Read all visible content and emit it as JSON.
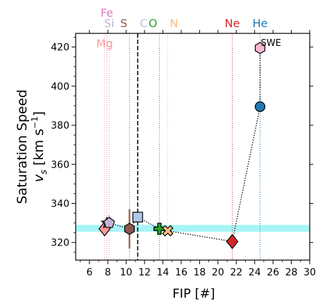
{
  "chart_data": {
    "type": "scatter",
    "xlabel": "FIP [#]",
    "ylabel_line1": "Saturation Speed",
    "ylabel_line2": "v_s [km s^-1]",
    "xlim": [
      4.5,
      30
    ],
    "ylim": [
      311,
      427
    ],
    "x_ticks": [
      6,
      8,
      10,
      12,
      14,
      16,
      18,
      20,
      22,
      24,
      26,
      28,
      30
    ],
    "y_ticks": [
      320,
      340,
      360,
      380,
      400,
      420
    ],
    "band": {
      "y0": 325.5,
      "y1": 329,
      "color": "#a6f5f7"
    },
    "dashed_vline": {
      "x": 11.26,
      "color": "#000000"
    },
    "elements": [
      {
        "name": "Fe",
        "fip": 7.9,
        "color": "#e377c2",
        "row": 0
      },
      {
        "name": "Si",
        "fip": 8.15,
        "color": "#c5b0d5",
        "row": 1
      },
      {
        "name": "Mg",
        "fip": 7.65,
        "color": "#ff9896",
        "row": 2
      },
      {
        "name": "S",
        "fip": 10.36,
        "color": "#8c564b",
        "row": 1
      },
      {
        "name": "C",
        "fip": 11.26,
        "color": "#aec7e8",
        "row": 1
      },
      {
        "name": "O",
        "fip": 13.62,
        "color": "#2ca02c",
        "row": 1
      },
      {
        "name": "N",
        "fip": 14.53,
        "color": "#ffbb78",
        "row": 1
      },
      {
        "name": "Ne",
        "fip": 21.56,
        "color": "#d62728",
        "row": 1
      },
      {
        "name": "He",
        "fip": 24.59,
        "color": "#1f77b4",
        "row": 1
      }
    ],
    "points": [
      {
        "element": "Mg",
        "x": 7.65,
        "y": 327,
        "marker": "diamond",
        "color": "#ff9896",
        "err": [
          326,
          330
        ]
      },
      {
        "element": "Fe",
        "x": 7.9,
        "y": 330,
        "marker": "star",
        "color": "#e377c2",
        "err": [
          329,
          331
        ]
      },
      {
        "element": "Si",
        "x": 8.15,
        "y": 330,
        "marker": "pentagon",
        "color": "#c5b0d5",
        "err": [
          328,
          334
        ]
      },
      {
        "element": "S",
        "x": 10.36,
        "y": 327,
        "marker": "hexagon",
        "color": "#8c564b",
        "err": [
          317,
          337
        ]
      },
      {
        "element": "C",
        "x": 11.26,
        "y": 333,
        "marker": "square",
        "color": "#aec7e8",
        "err": [
          331,
          335
        ]
      },
      {
        "element": "O",
        "x": 13.62,
        "y": 327,
        "marker": "plus",
        "color": "#2ca02c",
        "err": [
          326,
          328
        ]
      },
      {
        "element": "N",
        "x": 14.53,
        "y": 326,
        "marker": "x",
        "color": "#ffbb78",
        "err": [
          325,
          327
        ]
      },
      {
        "element": "Ne",
        "x": 21.56,
        "y": 320.5,
        "marker": "diamond",
        "color": "#d62728",
        "err": [
          320,
          321
        ]
      },
      {
        "element": "He",
        "x": 24.59,
        "y": 389.5,
        "marker": "circle",
        "color": "#1f77b4",
        "err": [
          387,
          391
        ]
      },
      {
        "element": "SWE",
        "x": 24.59,
        "y": 419.5,
        "marker": "hexagon",
        "color": "#f7b6d2",
        "err": [
          418,
          421
        ]
      }
    ],
    "connect_order": [
      "Mg",
      "Fe",
      "Si",
      "S",
      "C",
      "O",
      "N",
      "Ne",
      "He",
      "SWE"
    ],
    "swe_label": "SWE"
  }
}
